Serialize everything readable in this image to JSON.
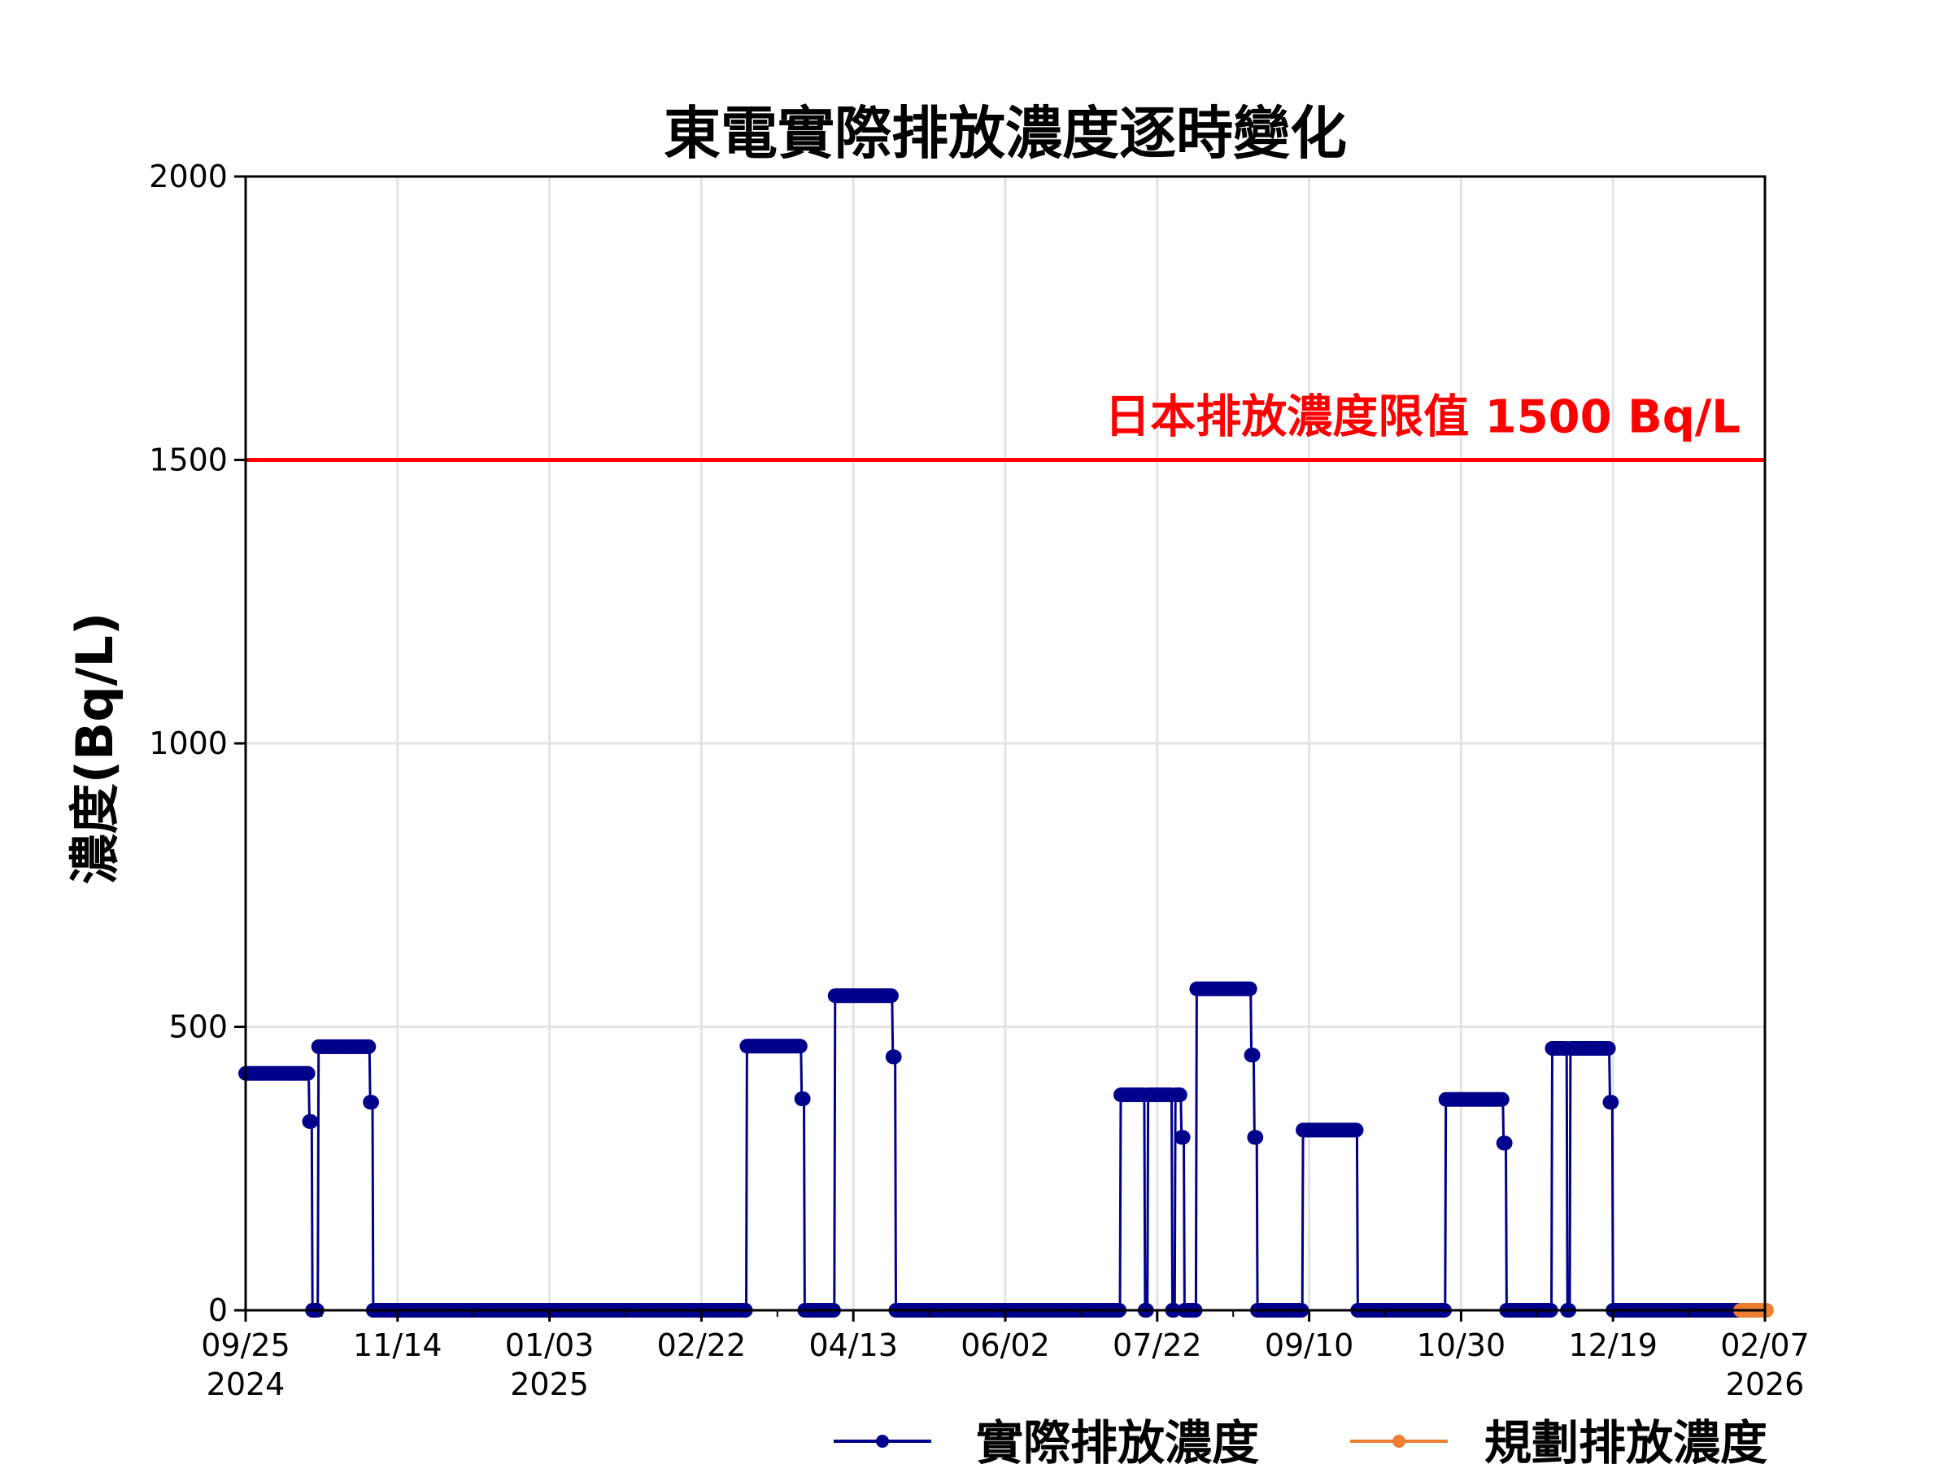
{
  "chart_data": {
    "type": "line",
    "title": "東電實際排放濃度逐時變化",
    "xlabel": "",
    "ylabel": "濃度(Bq/L)",
    "xlim": [
      "2024-09-25",
      "2026-02-07"
    ],
    "ylim": [
      0,
      2000
    ],
    "grid": true,
    "legend_placement": "bottom",
    "x_ticks": [
      {
        "date": "2024-09-25",
        "label": "09/25",
        "sublabel": "2024"
      },
      {
        "date": "2024-11-14",
        "label": "11/14",
        "sublabel": ""
      },
      {
        "date": "2025-01-03",
        "label": "01/03",
        "sublabel": "2025"
      },
      {
        "date": "2025-02-22",
        "label": "02/22",
        "sublabel": ""
      },
      {
        "date": "2025-04-13",
        "label": "04/13",
        "sublabel": ""
      },
      {
        "date": "2025-06-02",
        "label": "06/02",
        "sublabel": ""
      },
      {
        "date": "2025-07-22",
        "label": "07/22",
        "sublabel": ""
      },
      {
        "date": "2025-09-10",
        "label": "09/10",
        "sublabel": ""
      },
      {
        "date": "2025-10-30",
        "label": "10/30",
        "sublabel": ""
      },
      {
        "date": "2025-12-19",
        "label": "12/19",
        "sublabel": ""
      },
      {
        "date": "2026-02-07",
        "label": "02/07",
        "sublabel": "2026"
      }
    ],
    "y_ticks": [
      0,
      500,
      1000,
      1500,
      2000
    ],
    "reference_line": {
      "value": 1500,
      "label": "日本排放濃度限值 1500 Bq/L",
      "color": "#FF0000"
    },
    "series": [
      {
        "name": "實際排放濃度",
        "color": "#00008B",
        "runs": [
          [
            "2024-09-25",
            "2024-10-15",
            418
          ],
          [
            "2024-10-16",
            "2024-10-16",
            333
          ],
          [
            "2024-10-17",
            "2024-10-18",
            0
          ],
          [
            "2024-10-19",
            "2024-11-04",
            465
          ],
          [
            "2024-11-05",
            "2024-11-05",
            367
          ],
          [
            "2024-11-06",
            "2025-03-08",
            0
          ],
          [
            "2025-03-09",
            "2025-03-26",
            466
          ],
          [
            "2025-03-27",
            "2025-03-27",
            373
          ],
          [
            "2025-03-28",
            "2025-04-06",
            0
          ],
          [
            "2025-04-07",
            "2025-04-25",
            555
          ],
          [
            "2025-04-26",
            "2025-04-26",
            447
          ],
          [
            "2025-04-27",
            "2025-07-09",
            0
          ],
          [
            "2025-07-10",
            "2025-07-17",
            380
          ],
          [
            "2025-07-18",
            "2025-07-18",
            0
          ],
          [
            "2025-07-19",
            "2025-07-26",
            380
          ],
          [
            "2025-07-27",
            "2025-07-27",
            0
          ],
          [
            "2025-07-28",
            "2025-07-29",
            380
          ],
          [
            "2025-07-30",
            "2025-07-30",
            305
          ],
          [
            "2025-07-31",
            "2025-08-03",
            0
          ],
          [
            "2025-08-04",
            "2025-08-21",
            567
          ],
          [
            "2025-08-22",
            "2025-08-22",
            450
          ],
          [
            "2025-08-23",
            "2025-08-23",
            305
          ],
          [
            "2025-08-24",
            "2025-09-07",
            0
          ],
          [
            "2025-09-08",
            "2025-09-25",
            318
          ],
          [
            "2025-09-26",
            "2025-10-24",
            0
          ],
          [
            "2025-10-25",
            "2025-11-12",
            372
          ],
          [
            "2025-11-13",
            "2025-11-13",
            295
          ],
          [
            "2025-11-14",
            "2025-11-28",
            0
          ],
          [
            "2025-11-29",
            "2025-12-03",
            462
          ],
          [
            "2025-12-04",
            "2025-12-04",
            0
          ],
          [
            "2025-12-05",
            "2025-12-17",
            462
          ],
          [
            "2025-12-18",
            "2025-12-18",
            367
          ],
          [
            "2025-12-19",
            "2026-01-29",
            0
          ]
        ]
      },
      {
        "name": "規劃排放濃度",
        "color": "#ED7D31",
        "runs": [
          [
            "2026-01-30",
            "2026-02-07",
            0
          ]
        ]
      }
    ]
  }
}
